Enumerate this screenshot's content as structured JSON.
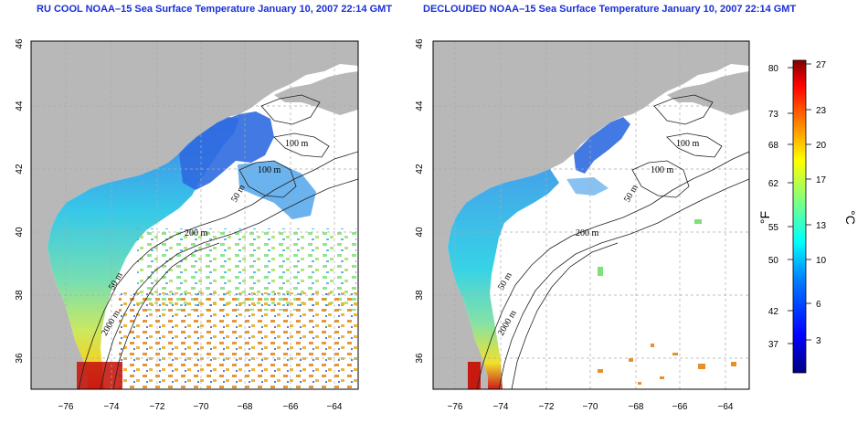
{
  "titles": {
    "left": "RU COOL NOAA–15 Sea Surface Temperature January 10, 2007 22:14 GMT",
    "right": "DECLOUDED NOAA–15 Sea Surface Temperature January 10, 2007 22:14 GMT"
  },
  "axes": {
    "lon_ticks": [
      "−76",
      "−74",
      "−72",
      "−70",
      "−68",
      "−66",
      "−64"
    ],
    "lat_ticks": [
      "36",
      "38",
      "40",
      "42",
      "44",
      "46"
    ]
  },
  "contour_labels": {
    "left": [
      "100 m",
      "100 m",
      "50 m",
      "200 m",
      "50 m",
      "2000 m"
    ],
    "right": [
      "100 m",
      "100 m",
      "50 m",
      "200 m",
      "50 m",
      "2000 m"
    ]
  },
  "colorbar": {
    "fahrenheit_label": "°F",
    "celsius_label": "°C",
    "fahrenheit_ticks": [
      "80",
      "73",
      "68",
      "62",
      "55",
      "50",
      "42",
      "37"
    ],
    "celsius_ticks": [
      "27",
      "23",
      "20",
      "17",
      "13",
      "10",
      "6",
      "3"
    ],
    "colors": [
      "#00007f",
      "#0000ff",
      "#0080ff",
      "#00ffff",
      "#80ff80",
      "#ffff00",
      "#ff8000",
      "#ff0000",
      "#7f0000"
    ]
  },
  "colors": {
    "land": "#b8b8b8",
    "title": "#1a2fd6"
  }
}
